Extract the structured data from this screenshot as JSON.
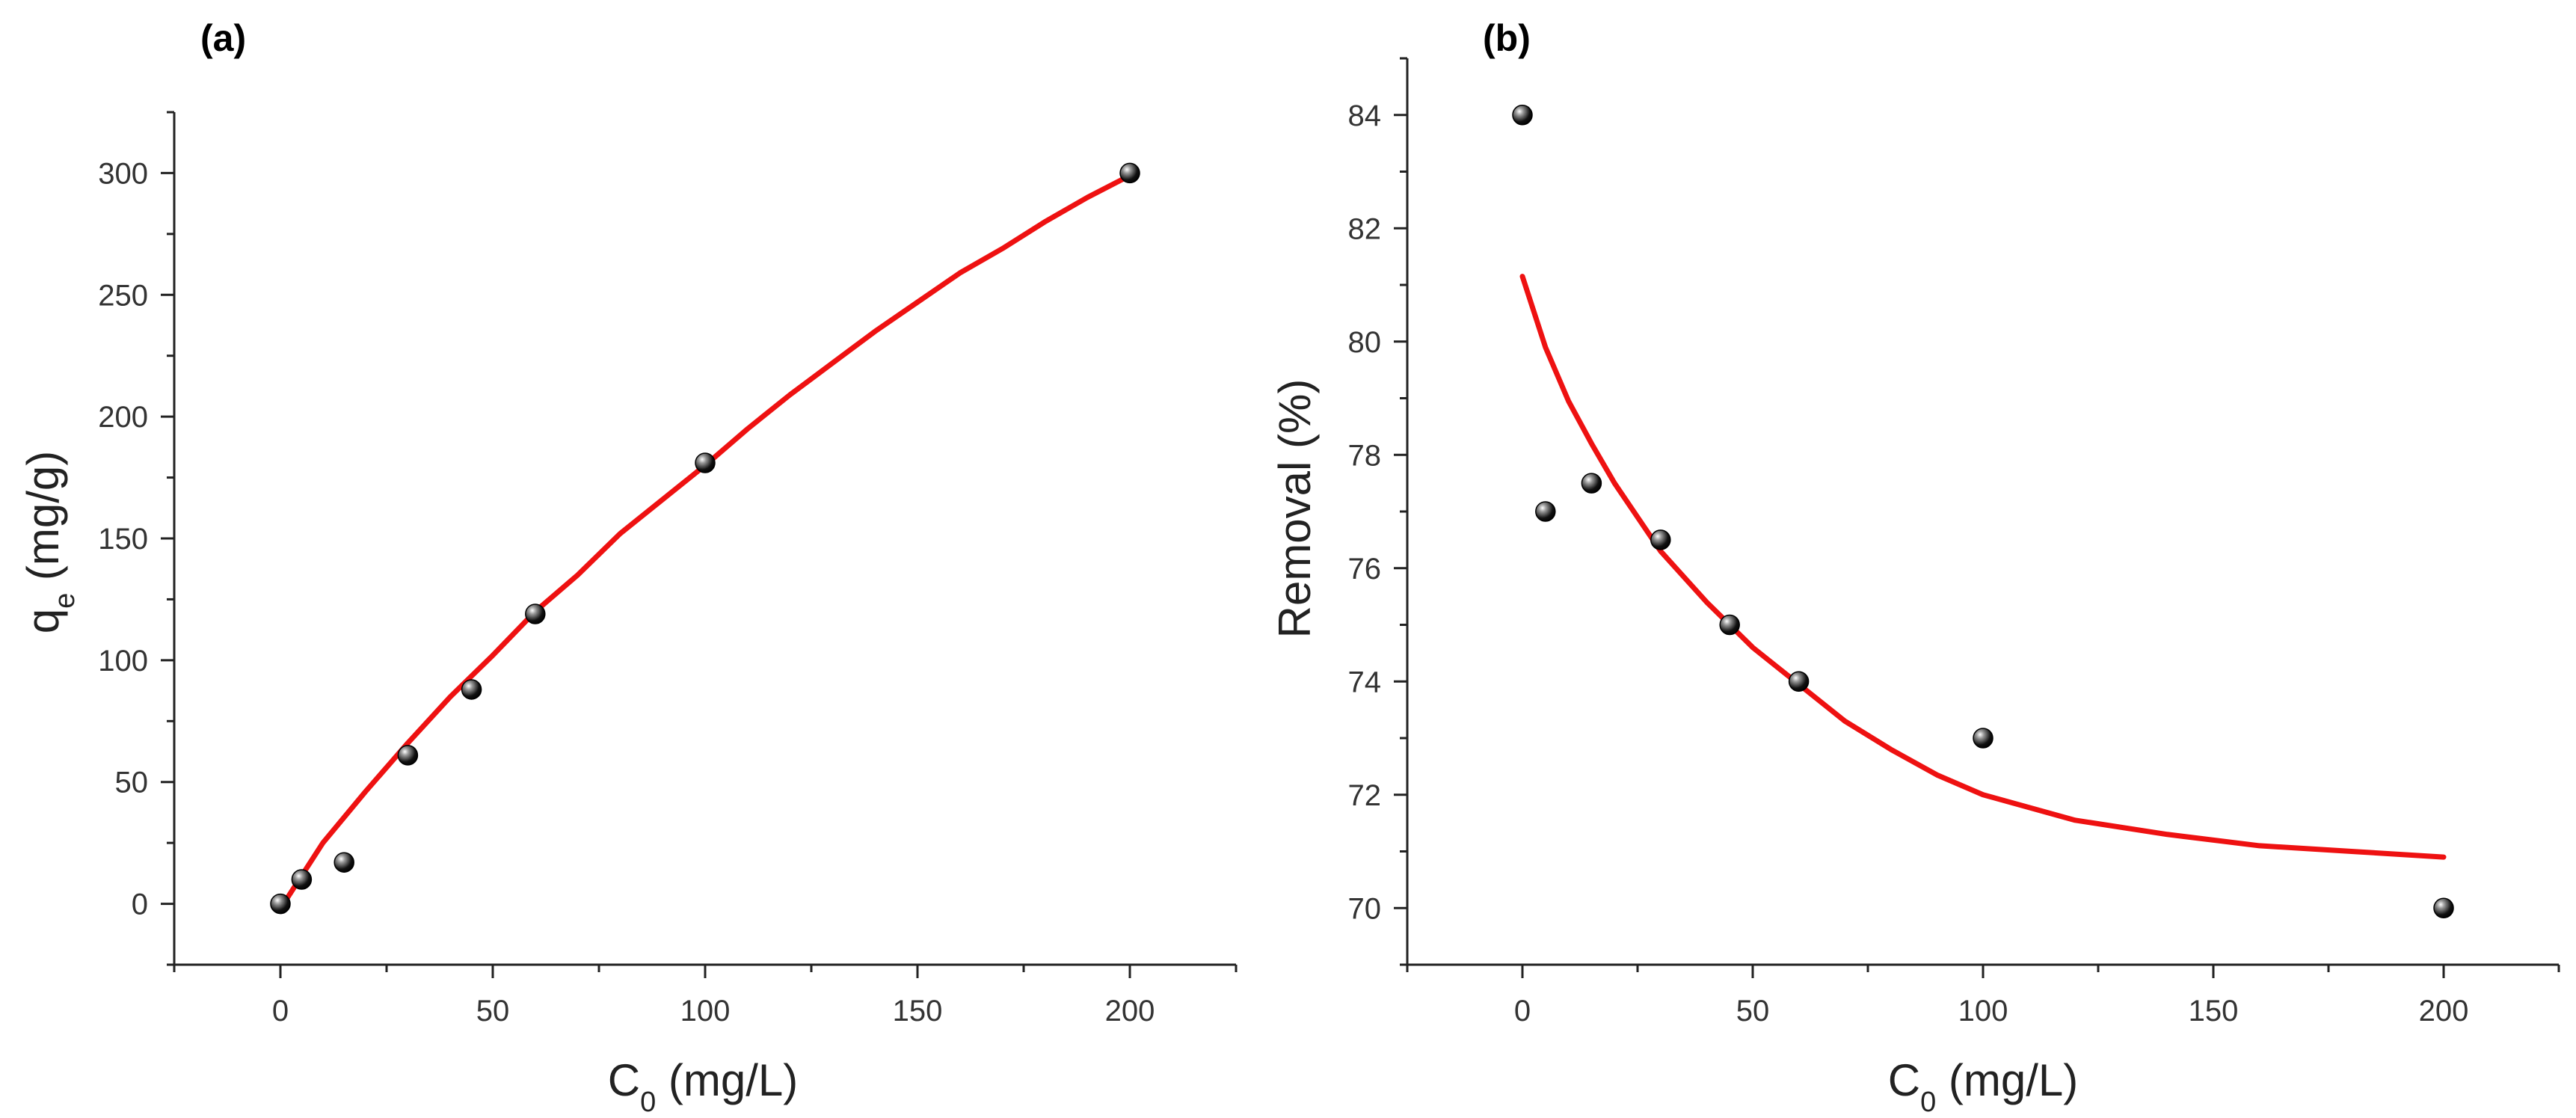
{
  "colors": {
    "fit": "#ee1111",
    "marker": "#111111",
    "axis": "#222222"
  },
  "chart_data": [
    {
      "type": "scatter",
      "panel_label": "(a)",
      "title": "",
      "xlabel": {
        "main": "C",
        "sub": "0",
        "rest": " (mg/L)"
      },
      "ylabel": {
        "main": "q",
        "sub": "e",
        "rest": " (mg/g)"
      },
      "xlim": [
        -25,
        225
      ],
      "ylim": [
        -25,
        325
      ],
      "xticks": [
        0,
        50,
        100,
        150,
        200
      ],
      "yticks": [
        0,
        50,
        100,
        150,
        200,
        250,
        300
      ],
      "series": [
        {
          "kind": "points",
          "x": [
            0,
            5,
            15,
            30,
            45,
            60,
            100,
            200
          ],
          "y": [
            0,
            10,
            17,
            61,
            88,
            119,
            181,
            300
          ]
        },
        {
          "kind": "fit",
          "x": [
            0,
            10,
            20,
            30,
            40,
            50,
            60,
            70,
            80,
            90,
            100,
            110,
            120,
            130,
            140,
            150,
            160,
            170,
            180,
            190,
            200
          ],
          "y": [
            -2,
            25,
            46,
            66,
            85,
            102,
            120,
            135,
            152,
            166,
            180,
            195,
            209,
            222,
            235,
            247,
            259,
            269,
            280,
            290,
            299
          ]
        }
      ]
    },
    {
      "type": "scatter",
      "panel_label": "(b)",
      "title": "",
      "xlabel": {
        "main": "C",
        "sub": "0",
        "rest": " (mg/L)"
      },
      "ylabel": {
        "main": "Removal (%)",
        "sub": "",
        "rest": ""
      },
      "xlim": [
        -25,
        225
      ],
      "ylim": [
        69,
        85
      ],
      "xticks": [
        0,
        50,
        100,
        150,
        200
      ],
      "yticks": [
        70,
        72,
        74,
        76,
        78,
        80,
        82,
        84
      ],
      "series": [
        {
          "kind": "points",
          "x": [
            0,
            5,
            15,
            30,
            45,
            60,
            100,
            200
          ],
          "y": [
            84,
            77,
            77.5,
            76.5,
            75,
            74,
            73,
            70
          ]
        },
        {
          "kind": "fit",
          "x": [
            0,
            5,
            10,
            15,
            20,
            25,
            30,
            40,
            50,
            60,
            70,
            80,
            90,
            100,
            120,
            140,
            160,
            180,
            200
          ],
          "y": [
            81.15,
            79.9,
            78.95,
            78.2,
            77.5,
            76.9,
            76.3,
            75.4,
            74.6,
            73.95,
            73.3,
            72.8,
            72.35,
            72.0,
            71.55,
            71.3,
            71.1,
            71.0,
            70.9
          ]
        }
      ]
    }
  ]
}
